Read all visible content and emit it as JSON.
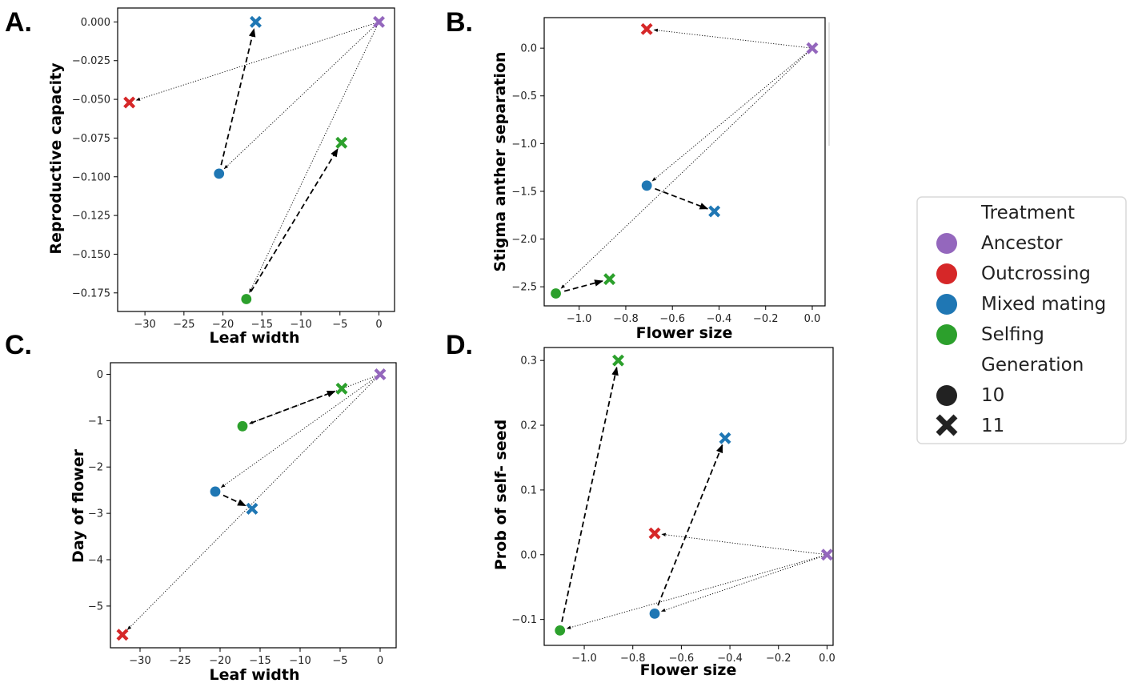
{
  "colors": {
    "Ancestor": "#9467bd",
    "Outcrossing": "#d62728",
    "Mixed mating": "#1f77b4",
    "Selfing": "#2ca02c",
    "generation_marker": "#222222"
  },
  "legend": {
    "treatment_title": "Treatment",
    "treatments": [
      "Ancestor",
      "Outcrossing",
      "Mixed mating",
      "Selfing"
    ],
    "generation_title": "Generation",
    "generations": [
      "10",
      "11"
    ]
  },
  "chart_data": [
    {
      "type": "scatter",
      "panel": "A.",
      "xlabel": "Leaf width",
      "ylabel": "Reproductive capacity",
      "xlim": [
        -33.5,
        2.0
      ],
      "ylim": [
        -0.187,
        0.009
      ],
      "xticks": [
        -30,
        -25,
        -20,
        -15,
        -10,
        -5,
        0
      ],
      "xtick_labels": [
        "−30",
        "−25",
        "−20",
        "−15",
        "−10",
        "−5",
        "0"
      ],
      "yticks": [
        0.0,
        -0.025,
        -0.05,
        -0.075,
        -0.1,
        -0.125,
        -0.15,
        -0.175
      ],
      "ytick_labels": [
        "0.000",
        "−0.025",
        "−0.050",
        "−0.075",
        "−0.100",
        "−0.125",
        "−0.150",
        "−0.175"
      ],
      "points": [
        {
          "treatment": "Ancestor",
          "generation": "11",
          "x": 0.0,
          "y": 0.0
        },
        {
          "treatment": "Outcrossing",
          "generation": "11",
          "x": -32.0,
          "y": -0.052
        },
        {
          "treatment": "Mixed mating",
          "generation": "10",
          "x": -20.5,
          "y": -0.098
        },
        {
          "treatment": "Mixed mating",
          "generation": "11",
          "x": -15.8,
          "y": 0.0
        },
        {
          "treatment": "Selfing",
          "generation": "10",
          "x": -17.0,
          "y": -0.179
        },
        {
          "treatment": "Selfing",
          "generation": "11",
          "x": -4.8,
          "y": -0.078
        }
      ],
      "arrows": [
        {
          "style": "dotted",
          "from": [
            0.0,
            0.0
          ],
          "to": [
            -32.0,
            -0.052
          ]
        },
        {
          "style": "dotted",
          "from": [
            0.0,
            0.0
          ],
          "to": [
            -20.5,
            -0.098
          ]
        },
        {
          "style": "dotted",
          "from": [
            0.0,
            0.0
          ],
          "to": [
            -17.0,
            -0.179
          ]
        },
        {
          "style": "dashed",
          "from": [
            -20.5,
            -0.098
          ],
          "to": [
            -15.8,
            0.0
          ]
        },
        {
          "style": "dashed",
          "from": [
            -17.0,
            -0.179
          ],
          "to": [
            -4.8,
            -0.078
          ]
        }
      ]
    },
    {
      "type": "scatter",
      "panel": "B.",
      "xlabel": "Flower size",
      "ylabel": "Stigma anther separation",
      "xlim": [
        -1.15,
        0.055
      ],
      "ylim": [
        -2.7,
        0.32
      ],
      "xticks": [
        -1.0,
        -0.8,
        -0.6,
        -0.4,
        -0.2,
        0.0
      ],
      "xtick_labels": [
        "−1.0",
        "−0.8",
        "−0.6",
        "−0.4",
        "−0.2",
        "0.0"
      ],
      "yticks": [
        0.0,
        -0.5,
        -1.0,
        -1.5,
        -2.0,
        -2.5
      ],
      "ytick_labels": [
        "0.0",
        "−0.5",
        "−1.0",
        "−1.5",
        "−2.0",
        "−2.5"
      ],
      "points": [
        {
          "treatment": "Ancestor",
          "generation": "11",
          "x": 0.0,
          "y": 0.0
        },
        {
          "treatment": "Outcrossing",
          "generation": "11",
          "x": -0.71,
          "y": 0.2
        },
        {
          "treatment": "Mixed mating",
          "generation": "10",
          "x": -0.71,
          "y": -1.44
        },
        {
          "treatment": "Mixed mating",
          "generation": "11",
          "x": -0.42,
          "y": -1.71
        },
        {
          "treatment": "Selfing",
          "generation": "10",
          "x": -1.1,
          "y": -2.57
        },
        {
          "treatment": "Selfing",
          "generation": "11",
          "x": -0.87,
          "y": -2.42
        }
      ],
      "arrows": [
        {
          "style": "dotted",
          "from": [
            0.0,
            0.0
          ],
          "to": [
            -0.71,
            0.2
          ]
        },
        {
          "style": "dotted",
          "from": [
            0.0,
            0.0
          ],
          "to": [
            -0.71,
            -1.44
          ]
        },
        {
          "style": "dotted",
          "from": [
            0.0,
            0.0
          ],
          "to": [
            -1.1,
            -2.57
          ]
        },
        {
          "style": "dashed",
          "from": [
            -0.71,
            -1.44
          ],
          "to": [
            -0.42,
            -1.71
          ]
        },
        {
          "style": "dashed",
          "from": [
            -1.1,
            -2.57
          ],
          "to": [
            -0.87,
            -2.42
          ]
        }
      ]
    },
    {
      "type": "scatter",
      "panel": "C.",
      "xlabel": "Leaf width",
      "ylabel": "Day of flower",
      "xlim": [
        -33.7,
        2.0
      ],
      "ylim": [
        -5.9,
        0.25
      ],
      "xticks": [
        -30,
        -25,
        -20,
        -15,
        -10,
        -5,
        0
      ],
      "xtick_labels": [
        "−30",
        "−25",
        "−20",
        "−15",
        "−10",
        "−5",
        "0"
      ],
      "yticks": [
        0,
        -1,
        -2,
        -3,
        -4,
        -5
      ],
      "ytick_labels": [
        "0",
        "−1",
        "−2",
        "−3",
        "−4",
        "−5"
      ],
      "points": [
        {
          "treatment": "Ancestor",
          "generation": "11",
          "x": 0.0,
          "y": 0.0
        },
        {
          "treatment": "Outcrossing",
          "generation": "11",
          "x": -32.2,
          "y": -5.62
        },
        {
          "treatment": "Mixed mating",
          "generation": "10",
          "x": -20.6,
          "y": -2.53
        },
        {
          "treatment": "Mixed mating",
          "generation": "11",
          "x": -16.0,
          "y": -2.9
        },
        {
          "treatment": "Selfing",
          "generation": "10",
          "x": -17.2,
          "y": -1.12
        },
        {
          "treatment": "Selfing",
          "generation": "11",
          "x": -4.8,
          "y": -0.31
        }
      ],
      "arrows": [
        {
          "style": "dotted",
          "from": [
            0.0,
            0.0
          ],
          "to": [
            -32.2,
            -5.62
          ]
        },
        {
          "style": "dotted",
          "from": [
            0.0,
            0.0
          ],
          "to": [
            -20.6,
            -2.53
          ]
        },
        {
          "style": "dotted",
          "from": [
            0.0,
            0.0
          ],
          "to": [
            -17.2,
            -1.12
          ]
        },
        {
          "style": "dashed",
          "from": [
            -20.6,
            -2.53
          ],
          "to": [
            -16.0,
            -2.9
          ]
        },
        {
          "style": "dashed",
          "from": [
            -17.2,
            -1.12
          ],
          "to": [
            -4.8,
            -0.31
          ]
        }
      ]
    },
    {
      "type": "scatter",
      "panel": "D.",
      "xlabel": "Flower size",
      "ylabel": "Prob of self- seed",
      "xlim": [
        -1.165,
        0.025
      ],
      "ylim": [
        -0.14,
        0.32
      ],
      "xticks": [
        -1.0,
        -0.8,
        -0.6,
        -0.4,
        -0.2,
        0.0
      ],
      "xtick_labels": [
        "−1.0",
        "−0.8",
        "−0.6",
        "−0.4",
        "−0.2",
        "0.0"
      ],
      "yticks": [
        0.3,
        0.2,
        0.1,
        0.0,
        -0.1
      ],
      "ytick_labels": [
        "0.3",
        "0.2",
        "0.1",
        "0.0",
        "−0.1"
      ],
      "points": [
        {
          "treatment": "Ancestor",
          "generation": "11",
          "x": 0.0,
          "y": 0.0
        },
        {
          "treatment": "Outcrossing",
          "generation": "11",
          "x": -0.71,
          "y": 0.033
        },
        {
          "treatment": "Mixed mating",
          "generation": "10",
          "x": -0.71,
          "y": -0.091
        },
        {
          "treatment": "Mixed mating",
          "generation": "11",
          "x": -0.42,
          "y": 0.18
        },
        {
          "treatment": "Selfing",
          "generation": "10",
          "x": -1.1,
          "y": -0.117
        },
        {
          "treatment": "Selfing",
          "generation": "11",
          "x": -0.86,
          "y": 0.3
        }
      ],
      "arrows": [
        {
          "style": "dotted",
          "from": [
            0.0,
            0.0
          ],
          "to": [
            -0.71,
            0.033
          ]
        },
        {
          "style": "dotted",
          "from": [
            0.0,
            0.0
          ],
          "to": [
            -0.71,
            -0.091
          ]
        },
        {
          "style": "dotted",
          "from": [
            0.0,
            0.0
          ],
          "to": [
            -1.1,
            -0.117
          ]
        },
        {
          "style": "dashed",
          "from": [
            -0.71,
            -0.091
          ],
          "to": [
            -0.42,
            0.18
          ]
        },
        {
          "style": "dashed",
          "from": [
            -1.1,
            -0.117
          ],
          "to": [
            -0.86,
            0.3
          ]
        }
      ]
    }
  ]
}
